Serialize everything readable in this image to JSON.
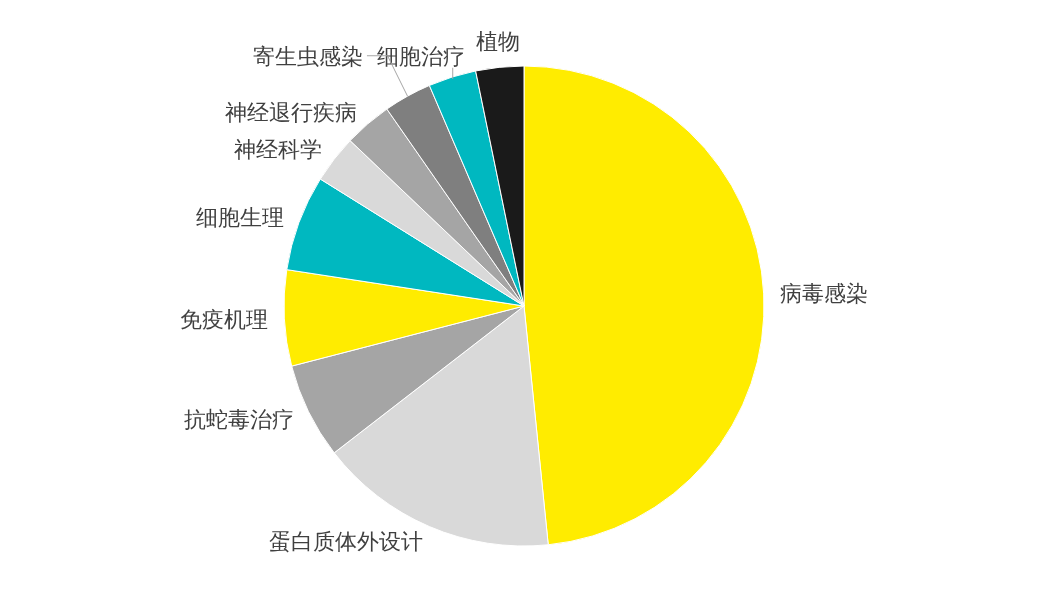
{
  "chart_data": {
    "type": "pie",
    "categories": [
      "病毒感染",
      "蛋白质体外设计",
      "抗蛇毒治疗",
      "免疫机理",
      "细胞生理",
      "神经科学",
      "神经退行疾病",
      "寄生虫感染",
      "细胞治疗",
      "植物"
    ],
    "values": [
      48.39,
      16.13,
      6.45,
      6.45,
      6.45,
      3.23,
      3.22,
      3.23,
      3.22,
      3.23
    ],
    "colors": [
      "#ffec00",
      "#d9d9d9",
      "#a5a5a5",
      "#ffec00",
      "#00b8c0",
      "#d9d9d9",
      "#a5a5a5",
      "#7f7f7f",
      "#00b8c0",
      "#1a1a1a"
    ]
  }
}
